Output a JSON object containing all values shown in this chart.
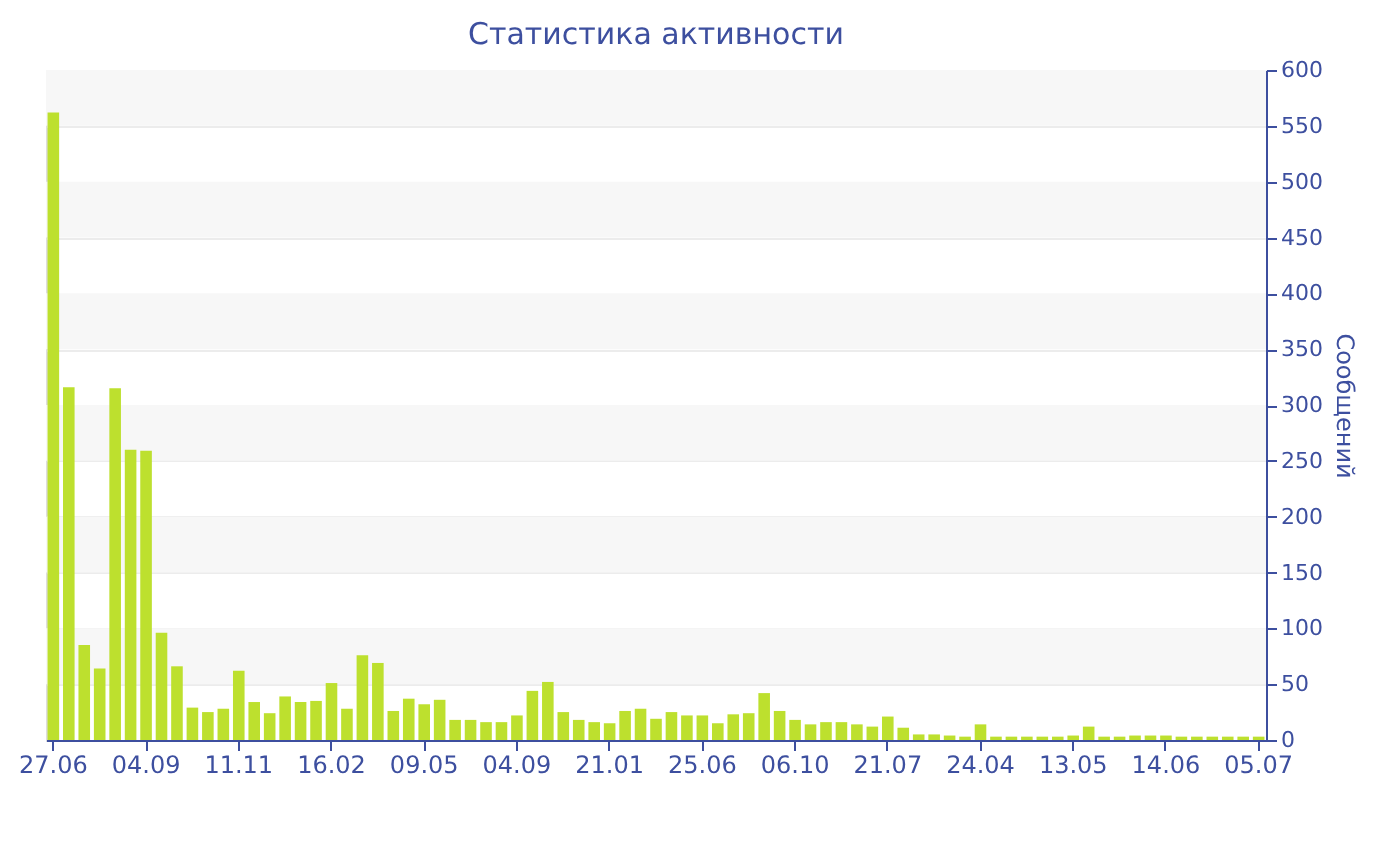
{
  "chart_data": {
    "type": "bar",
    "title": "Статистика активности",
    "ylabel": "Сообщений",
    "categories": [
      "27.06",
      null,
      null,
      null,
      null,
      null,
      "04.09",
      null,
      null,
      null,
      null,
      null,
      "11.11",
      null,
      null,
      null,
      null,
      null,
      "16.02",
      null,
      null,
      null,
      null,
      null,
      "09.05",
      null,
      null,
      null,
      null,
      null,
      "04.09",
      null,
      null,
      null,
      null,
      null,
      "21.01",
      null,
      null,
      null,
      null,
      null,
      "25.06",
      null,
      null,
      null,
      null,
      null,
      "06.10",
      null,
      null,
      null,
      null,
      null,
      "21.07",
      null,
      null,
      null,
      null,
      null,
      "24.04",
      null,
      null,
      null,
      null,
      null,
      "13.05",
      null,
      null,
      null,
      null,
      null,
      "14.06",
      null,
      null,
      null,
      null,
      null,
      "05.07"
    ],
    "values": [
      562,
      316,
      85,
      64,
      315,
      260,
      259,
      96,
      66,
      29,
      25,
      28,
      62,
      34,
      24,
      39,
      34,
      35,
      51,
      28,
      76,
      69,
      26,
      37,
      32,
      36,
      18,
      18,
      16,
      16,
      22,
      44,
      52,
      25,
      18,
      16,
      15,
      26,
      28,
      19,
      25,
      22,
      22,
      15,
      23,
      24,
      42,
      26,
      18,
      14,
      16,
      16,
      14,
      12,
      21,
      11,
      5,
      5,
      4,
      3,
      14,
      3,
      3,
      3,
      3,
      3,
      4,
      12,
      3,
      3,
      4,
      4,
      4,
      3,
      3,
      3,
      3,
      3,
      3
    ],
    "color": "#bde02e",
    "ylim": [
      0,
      600
    ],
    "yticks": [
      0,
      50,
      100,
      150,
      200,
      250,
      300,
      350,
      400,
      450,
      500,
      550,
      600
    ],
    "grid": "y"
  }
}
